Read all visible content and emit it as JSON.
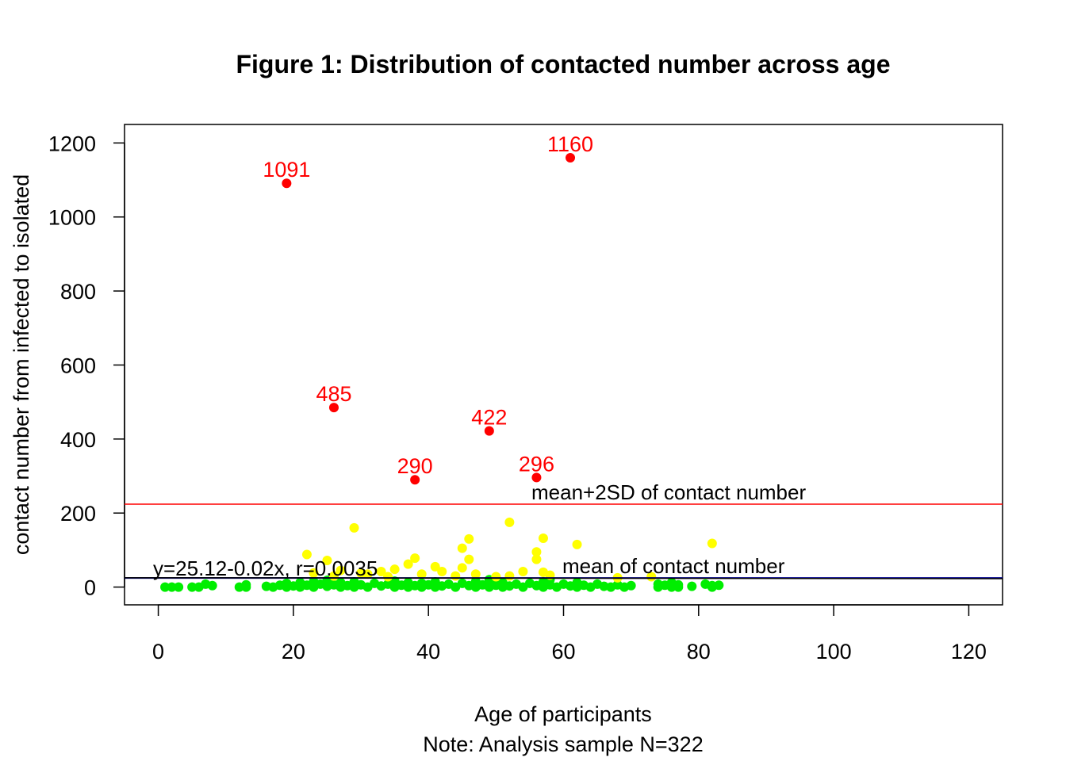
{
  "chart_data": {
    "type": "scatter",
    "title": "Figure 1: Distribution of contacted number across age",
    "xlabel": "Age of participants",
    "note": "Note: Analysis sample N=322",
    "ylabel": "contact number from infected to isolated",
    "xlim": [
      -5,
      125
    ],
    "ylim": [
      -48,
      1250
    ],
    "x_ticks": [
      0,
      20,
      40,
      60,
      80,
      100,
      120
    ],
    "y_ticks": [
      0,
      200,
      400,
      600,
      800,
      1000,
      1200
    ],
    "grid": false,
    "mean_line": {
      "y": 24.5,
      "label": "mean of contact number",
      "color": "#00008B"
    },
    "sd_line": {
      "y": 224,
      "label": "mean+2SD of contact number",
      "color": "#FF0000"
    },
    "regression": {
      "label": "y=25.12-0.02x, r=0.0035",
      "intercept": 25.12,
      "slope": -0.02,
      "color": "#000000"
    },
    "series": [
      {
        "color": "#FF0000",
        "points": [
          {
            "x": 19,
            "y": 1091,
            "label": "1091"
          },
          {
            "x": 61,
            "y": 1160,
            "label": "1160"
          },
          {
            "x": 26,
            "y": 485,
            "label": "485"
          },
          {
            "x": 49,
            "y": 422,
            "label": "422"
          },
          {
            "x": 38,
            "y": 290,
            "label": "290"
          },
          {
            "x": 56,
            "y": 296,
            "label": "296"
          }
        ]
      },
      {
        "color": "#FFFF00",
        "points": [
          {
            "x": 29,
            "y": 160
          },
          {
            "x": 52,
            "y": 175
          },
          {
            "x": 22,
            "y": 88
          },
          {
            "x": 25,
            "y": 72
          },
          {
            "x": 45,
            "y": 105
          },
          {
            "x": 46,
            "y": 130
          },
          {
            "x": 46,
            "y": 75
          },
          {
            "x": 45,
            "y": 52
          },
          {
            "x": 57,
            "y": 132
          },
          {
            "x": 56,
            "y": 95
          },
          {
            "x": 56,
            "y": 75
          },
          {
            "x": 62,
            "y": 115
          },
          {
            "x": 82,
            "y": 118
          },
          {
            "x": 38,
            "y": 78
          },
          {
            "x": 37,
            "y": 62
          },
          {
            "x": 41,
            "y": 55
          },
          {
            "x": 42,
            "y": 42
          },
          {
            "x": 27,
            "y": 45
          },
          {
            "x": 30,
            "y": 38
          },
          {
            "x": 33,
            "y": 42
          },
          {
            "x": 54,
            "y": 42
          },
          {
            "x": 57,
            "y": 40
          },
          {
            "x": 47,
            "y": 35
          },
          {
            "x": 35,
            "y": 48
          },
          {
            "x": 23,
            "y": 38
          },
          {
            "x": 68,
            "y": 25
          },
          {
            "x": 73,
            "y": 28
          },
          {
            "x": 39,
            "y": 35
          },
          {
            "x": 52,
            "y": 30
          },
          {
            "x": 58,
            "y": 32
          },
          {
            "x": 31,
            "y": 35
          },
          {
            "x": 26,
            "y": 30
          },
          {
            "x": 44,
            "y": 30
          },
          {
            "x": 50,
            "y": 28
          },
          {
            "x": 34,
            "y": 28
          }
        ]
      },
      {
        "color": "#00EE00",
        "points": [
          {
            "x": 1,
            "y": 0
          },
          {
            "x": 2,
            "y": 0
          },
          {
            "x": 3,
            "y": 0
          },
          {
            "x": 5,
            "y": 0
          },
          {
            "x": 6,
            "y": 0
          },
          {
            "x": 7,
            "y": 8
          },
          {
            "x": 8,
            "y": 4
          },
          {
            "x": 12,
            "y": 0
          },
          {
            "x": 13,
            "y": 6
          },
          {
            "x": 13,
            "y": 0
          },
          {
            "x": 16,
            "y": 2
          },
          {
            "x": 17,
            "y": 0
          },
          {
            "x": 18,
            "y": 5
          },
          {
            "x": 19,
            "y": 0
          },
          {
            "x": 19,
            "y": 10
          },
          {
            "x": 20,
            "y": 3
          },
          {
            "x": 21,
            "y": 0
          },
          {
            "x": 21,
            "y": 12
          },
          {
            "x": 22,
            "y": 5
          },
          {
            "x": 23,
            "y": 0
          },
          {
            "x": 23,
            "y": 15
          },
          {
            "x": 24,
            "y": 8
          },
          {
            "x": 25,
            "y": 2
          },
          {
            "x": 25,
            "y": 18
          },
          {
            "x": 26,
            "y": 6
          },
          {
            "x": 27,
            "y": 0
          },
          {
            "x": 27,
            "y": 12
          },
          {
            "x": 28,
            "y": 4
          },
          {
            "x": 29,
            "y": 0
          },
          {
            "x": 29,
            "y": 14
          },
          {
            "x": 30,
            "y": 6
          },
          {
            "x": 31,
            "y": 0
          },
          {
            "x": 32,
            "y": 10
          },
          {
            "x": 33,
            "y": 3
          },
          {
            "x": 34,
            "y": 8
          },
          {
            "x": 35,
            "y": 0
          },
          {
            "x": 35,
            "y": 16
          },
          {
            "x": 36,
            "y": 5
          },
          {
            "x": 37,
            "y": 0
          },
          {
            "x": 37,
            "y": 12
          },
          {
            "x": 38,
            "y": 4
          },
          {
            "x": 39,
            "y": 0
          },
          {
            "x": 39,
            "y": 10
          },
          {
            "x": 40,
            "y": 6
          },
          {
            "x": 41,
            "y": 0
          },
          {
            "x": 41,
            "y": 14
          },
          {
            "x": 42,
            "y": 3
          },
          {
            "x": 43,
            "y": 8
          },
          {
            "x": 44,
            "y": 0
          },
          {
            "x": 45,
            "y": 10
          },
          {
            "x": 46,
            "y": 4
          },
          {
            "x": 47,
            "y": 0
          },
          {
            "x": 47,
            "y": 15
          },
          {
            "x": 48,
            "y": 6
          },
          {
            "x": 49,
            "y": 0
          },
          {
            "x": 49,
            "y": 20
          },
          {
            "x": 50,
            "y": 5
          },
          {
            "x": 51,
            "y": 0
          },
          {
            "x": 51,
            "y": 12
          },
          {
            "x": 52,
            "y": 3
          },
          {
            "x": 53,
            "y": 8
          },
          {
            "x": 54,
            "y": 0
          },
          {
            "x": 55,
            "y": 10
          },
          {
            "x": 56,
            "y": 4
          },
          {
            "x": 57,
            "y": 0
          },
          {
            "x": 57,
            "y": 14
          },
          {
            "x": 58,
            "y": 20
          },
          {
            "x": 58,
            "y": 6
          },
          {
            "x": 59,
            "y": 0
          },
          {
            "x": 60,
            "y": 8
          },
          {
            "x": 61,
            "y": 3
          },
          {
            "x": 62,
            "y": 0
          },
          {
            "x": 62,
            "y": 12
          },
          {
            "x": 63,
            "y": 5
          },
          {
            "x": 64,
            "y": 0
          },
          {
            "x": 65,
            "y": 8
          },
          {
            "x": 66,
            "y": 2
          },
          {
            "x": 67,
            "y": 0
          },
          {
            "x": 68,
            "y": 6
          },
          {
            "x": 69,
            "y": 0
          },
          {
            "x": 70,
            "y": 4
          },
          {
            "x": 74,
            "y": 8
          },
          {
            "x": 74,
            "y": 0
          },
          {
            "x": 75,
            "y": 5
          },
          {
            "x": 76,
            "y": 12
          },
          {
            "x": 76,
            "y": 0
          },
          {
            "x": 77,
            "y": 6
          },
          {
            "x": 77,
            "y": 0
          },
          {
            "x": 79,
            "y": 2
          },
          {
            "x": 81,
            "y": 8
          },
          {
            "x": 82,
            "y": 4
          },
          {
            "x": 82,
            "y": 0
          },
          {
            "x": 83,
            "y": 5
          }
        ]
      }
    ]
  }
}
